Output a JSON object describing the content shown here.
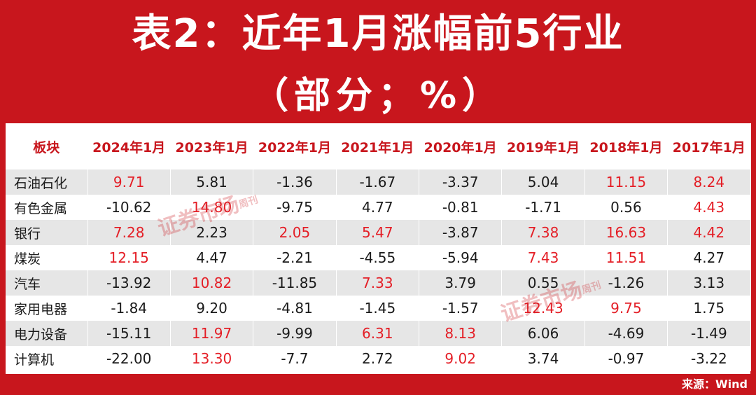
{
  "title": {
    "line1": "表2：近年1月涨幅前5行业",
    "line2": "（部分；%）"
  },
  "source": "来源：Wind",
  "watermark": {
    "main": "证券市场",
    "sub": "周刊"
  },
  "colors": {
    "background": "#c8161d",
    "header_text": "#c8161d",
    "highlight": "#e41e26",
    "stripe": "#e6e6e6"
  },
  "chart_data": {
    "type": "table",
    "columns": [
      "板块",
      "2024年1月",
      "2023年1月",
      "2022年1月",
      "2021年1月",
      "2020年1月",
      "2019年1月",
      "2018年1月",
      "2017年1月"
    ],
    "rows": [
      {
        "name": "石油石化",
        "values": [
          "9.71",
          "5.81",
          "-1.36",
          "-1.67",
          "-3.37",
          "5.04",
          "11.15",
          "8.24"
        ],
        "highlight": [
          true,
          false,
          false,
          false,
          false,
          false,
          true,
          true
        ]
      },
      {
        "name": "有色金属",
        "values": [
          "-10.62",
          "14.80",
          "-9.75",
          "4.77",
          "-0.81",
          "-1.71",
          "0.56",
          "4.43"
        ],
        "highlight": [
          false,
          true,
          false,
          false,
          false,
          false,
          false,
          true
        ]
      },
      {
        "name": "银行",
        "values": [
          "7.28",
          "2.23",
          "2.05",
          "5.47",
          "-3.87",
          "7.38",
          "16.63",
          "4.42"
        ],
        "highlight": [
          true,
          false,
          true,
          true,
          false,
          true,
          true,
          true
        ]
      },
      {
        "name": "煤炭",
        "values": [
          "12.15",
          "4.47",
          "-2.21",
          "-4.55",
          "-5.94",
          "7.43",
          "11.51",
          "4.27"
        ],
        "highlight": [
          true,
          false,
          false,
          false,
          false,
          true,
          true,
          false
        ]
      },
      {
        "name": "汽车",
        "values": [
          "-13.92",
          "10.82",
          "-11.85",
          "7.33",
          "3.79",
          "0.55",
          "-1.26",
          "3.13"
        ],
        "highlight": [
          false,
          true,
          false,
          true,
          false,
          false,
          false,
          false
        ]
      },
      {
        "name": "家用电器",
        "values": [
          "-1.84",
          "9.20",
          "-4.81",
          "-1.45",
          "-1.57",
          "12.43",
          "9.75",
          "1.75"
        ],
        "highlight": [
          false,
          false,
          false,
          false,
          false,
          true,
          true,
          false
        ]
      },
      {
        "name": "电力设备",
        "values": [
          "-15.11",
          "11.97",
          "-9.99",
          "6.31",
          "8.13",
          "6.06",
          "-4.69",
          "-1.49"
        ],
        "highlight": [
          false,
          true,
          false,
          true,
          true,
          false,
          false,
          false
        ]
      },
      {
        "name": "计算机",
        "values": [
          "-22.00",
          "13.30",
          "-7.7",
          "2.72",
          "9.02",
          "3.74",
          "-0.97",
          "-3.22"
        ],
        "highlight": [
          false,
          true,
          false,
          false,
          true,
          false,
          false,
          false
        ]
      }
    ]
  }
}
